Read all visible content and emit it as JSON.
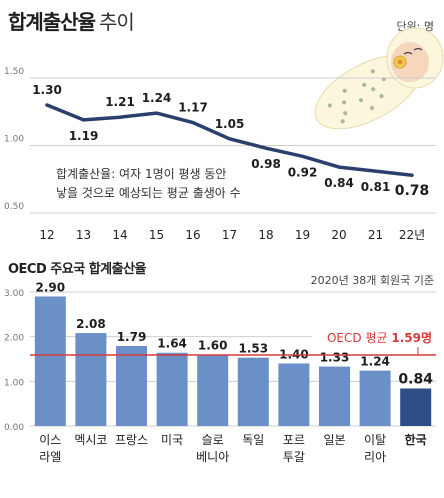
{
  "title": {
    "main": "합계출산율",
    "sub": "추이"
  },
  "unit_label": "단위: 명",
  "note": {
    "line1": "합계출산율: 여자 1명이 평생 동안",
    "line2": "낳을 것으로 예상되는 평균 출생아 수"
  },
  "section2_title": "OECD 주요국 합계출산율",
  "basis_label": "2020년 38개 회원국 기준",
  "colors": {
    "line": "#2b3f6e",
    "bar": "#6b8fc7",
    "bar_highlight": "#2c4d86",
    "avg_line": "#d63a3a",
    "grid": "#cfcfcf"
  },
  "chart_data": [
    {
      "type": "line",
      "categories": [
        "12",
        "13",
        "14",
        "15",
        "16",
        "17",
        "18",
        "19",
        "20",
        "21",
        "22년"
      ],
      "series": [
        {
          "values": [
            1.3,
            1.19,
            1.21,
            1.24,
            1.17,
            1.05,
            0.98,
            0.92,
            0.84,
            0.81,
            0.78
          ]
        }
      ],
      "value_labels": [
        "1.30",
        "1.19",
        "1.21",
        "1.24",
        "1.17",
        "1.05",
        "0.98",
        "0.92",
        "0.84",
        "0.81",
        "0.78"
      ],
      "yticks": [
        "1.50",
        "1.00",
        "0.50"
      ],
      "ylim": [
        0.5,
        1.5
      ],
      "grid": true
    },
    {
      "type": "bar",
      "categories": [
        "이스\n라엘",
        "멕시코",
        "프랑스",
        "미국",
        "슬로\n베니아",
        "독일",
        "포르\n투갈",
        "일본",
        "이탈\n리아",
        "한국"
      ],
      "values": [
        2.9,
        2.08,
        1.79,
        1.64,
        1.6,
        1.53,
        1.4,
        1.33,
        1.24,
        0.84
      ],
      "value_labels": [
        "2.90",
        "2.08",
        "1.79",
        "1.64",
        "1.60",
        "1.53",
        "1.40",
        "1.33",
        "1.24",
        "0.84"
      ],
      "yticks": [
        "3.00",
        "2.00",
        "1.00",
        "0.00"
      ],
      "ylim": [
        0,
        3
      ],
      "highlight_category": "한국",
      "reference_line": {
        "value": 1.59,
        "label_prefix": "OECD 평균 ",
        "label_value": "1.59명"
      },
      "grid": true
    }
  ]
}
